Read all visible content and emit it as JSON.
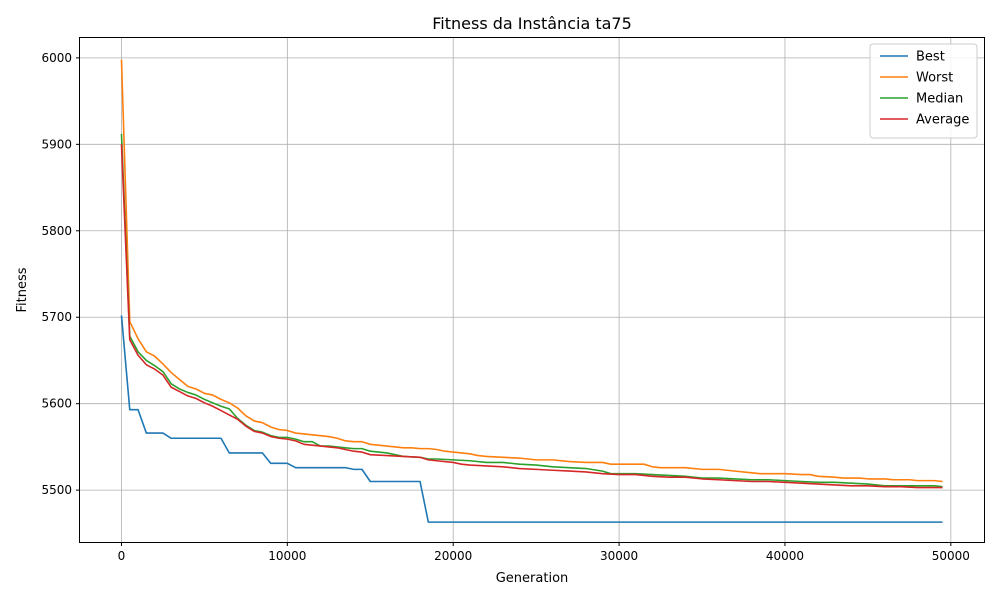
{
  "chart_data": {
    "type": "line",
    "title": "Fitness da Instância ta75",
    "xlabel": "Generation",
    "ylabel": "Fitness",
    "xlim": [
      -2500,
      52000
    ],
    "ylim": [
      5440,
      6023
    ],
    "xticks": [
      0,
      10000,
      20000,
      30000,
      40000,
      50000
    ],
    "yticks": [
      5500,
      5600,
      5700,
      5800,
      5900,
      6000
    ],
    "grid": true,
    "legend_position": "top-right",
    "series": [
      {
        "name": "Best",
        "color": "#1f77b4",
        "points": [
          [
            0,
            5702
          ],
          [
            500,
            5593
          ],
          [
            1000,
            5593
          ],
          [
            1500,
            5566
          ],
          [
            2500,
            5566
          ],
          [
            3000,
            5560
          ],
          [
            6000,
            5560
          ],
          [
            6500,
            5543
          ],
          [
            8500,
            5543
          ],
          [
            9000,
            5531
          ],
          [
            10000,
            5531
          ],
          [
            10500,
            5526
          ],
          [
            13500,
            5526
          ],
          [
            14000,
            5524
          ],
          [
            14500,
            5524
          ],
          [
            15000,
            5510
          ],
          [
            18000,
            5510
          ],
          [
            18500,
            5463
          ],
          [
            49500,
            5463
          ]
        ]
      },
      {
        "name": "Worst",
        "color": "#ff7f0e",
        "points": [
          [
            0,
            5998
          ],
          [
            500,
            5695
          ],
          [
            1000,
            5675
          ],
          [
            1500,
            5660
          ],
          [
            2000,
            5655
          ],
          [
            2500,
            5646
          ],
          [
            3000,
            5636
          ],
          [
            3500,
            5628
          ],
          [
            4000,
            5620
          ],
          [
            4500,
            5617
          ],
          [
            5000,
            5612
          ],
          [
            5500,
            5610
          ],
          [
            6000,
            5605
          ],
          [
            6500,
            5601
          ],
          [
            7000,
            5595
          ],
          [
            7500,
            5586
          ],
          [
            8000,
            5580
          ],
          [
            8500,
            5578
          ],
          [
            9000,
            5573
          ],
          [
            9500,
            5570
          ],
          [
            10000,
            5569
          ],
          [
            10500,
            5566
          ],
          [
            11000,
            5565
          ],
          [
            12000,
            5563
          ],
          [
            12500,
            5562
          ],
          [
            13000,
            5560
          ],
          [
            13500,
            5557
          ],
          [
            14000,
            5556
          ],
          [
            14500,
            5556
          ],
          [
            15000,
            5553
          ],
          [
            16000,
            5551
          ],
          [
            17000,
            5549
          ],
          [
            17500,
            5549
          ],
          [
            18000,
            5548
          ],
          [
            18500,
            5548
          ],
          [
            19000,
            5547
          ],
          [
            19500,
            5545
          ],
          [
            20000,
            5544
          ],
          [
            21000,
            5542
          ],
          [
            21500,
            5540
          ],
          [
            22000,
            5539
          ],
          [
            23000,
            5538
          ],
          [
            24000,
            5537
          ],
          [
            25000,
            5535
          ],
          [
            26000,
            5535
          ],
          [
            27000,
            5533
          ],
          [
            28000,
            5532
          ],
          [
            29000,
            5532
          ],
          [
            29500,
            5530
          ],
          [
            31500,
            5530
          ],
          [
            32000,
            5527
          ],
          [
            32500,
            5526
          ],
          [
            33500,
            5526
          ],
          [
            34000,
            5526
          ],
          [
            35000,
            5524
          ],
          [
            36000,
            5524
          ],
          [
            37000,
            5522
          ],
          [
            38000,
            5520
          ],
          [
            38500,
            5519
          ],
          [
            40000,
            5519
          ],
          [
            41000,
            5518
          ],
          [
            41500,
            5518
          ],
          [
            42000,
            5516
          ],
          [
            43000,
            5515
          ],
          [
            43500,
            5514
          ],
          [
            44500,
            5514
          ],
          [
            45000,
            5513
          ],
          [
            46000,
            5513
          ],
          [
            46500,
            5512
          ],
          [
            47500,
            5512
          ],
          [
            48000,
            5511
          ],
          [
            49000,
            5511
          ],
          [
            49500,
            5510
          ]
        ]
      },
      {
        "name": "Median",
        "color": "#2ca02c",
        "points": [
          [
            0,
            5912
          ],
          [
            500,
            5678
          ],
          [
            1000,
            5660
          ],
          [
            1500,
            5650
          ],
          [
            2000,
            5644
          ],
          [
            2500,
            5637
          ],
          [
            3000,
            5623
          ],
          [
            3500,
            5617
          ],
          [
            4000,
            5613
          ],
          [
            4500,
            5610
          ],
          [
            5000,
            5605
          ],
          [
            5500,
            5601
          ],
          [
            6000,
            5597
          ],
          [
            6500,
            5594
          ],
          [
            7000,
            5583
          ],
          [
            7500,
            5575
          ],
          [
            8000,
            5569
          ],
          [
            8500,
            5567
          ],
          [
            9000,
            5563
          ],
          [
            9500,
            5561
          ],
          [
            10000,
            5561
          ],
          [
            10500,
            5559
          ],
          [
            11000,
            5556
          ],
          [
            11500,
            5556
          ],
          [
            12000,
            5551
          ],
          [
            12500,
            5551
          ],
          [
            13000,
            5550
          ],
          [
            13500,
            5549
          ],
          [
            14000,
            5548
          ],
          [
            14500,
            5548
          ],
          [
            15000,
            5545
          ],
          [
            16000,
            5543
          ],
          [
            17000,
            5539
          ],
          [
            18000,
            5538
          ],
          [
            18500,
            5536
          ],
          [
            19000,
            5536
          ],
          [
            20000,
            5535
          ],
          [
            21000,
            5534
          ],
          [
            22000,
            5532
          ],
          [
            23000,
            5532
          ],
          [
            24000,
            5530
          ],
          [
            25000,
            5529
          ],
          [
            26000,
            5527
          ],
          [
            27000,
            5526
          ],
          [
            28000,
            5525
          ],
          [
            29000,
            5522
          ],
          [
            29500,
            5519
          ],
          [
            31000,
            5519
          ],
          [
            32000,
            5518
          ],
          [
            33000,
            5517
          ],
          [
            34000,
            5516
          ],
          [
            35000,
            5514
          ],
          [
            36000,
            5514
          ],
          [
            37000,
            5513
          ],
          [
            38000,
            5512
          ],
          [
            39000,
            5512
          ],
          [
            40000,
            5511
          ],
          [
            41000,
            5510
          ],
          [
            42000,
            5509
          ],
          [
            43000,
            5509
          ],
          [
            44000,
            5508
          ],
          [
            45000,
            5507
          ],
          [
            46000,
            5505
          ],
          [
            47000,
            5505
          ],
          [
            48000,
            5505
          ],
          [
            49000,
            5505
          ],
          [
            49500,
            5504
          ]
        ]
      },
      {
        "name": "Average",
        "color": "#d62728",
        "points": [
          [
            0,
            5900
          ],
          [
            500,
            5674
          ],
          [
            1000,
            5656
          ],
          [
            1500,
            5645
          ],
          [
            2000,
            5640
          ],
          [
            2500,
            5633
          ],
          [
            3000,
            5619
          ],
          [
            3500,
            5614
          ],
          [
            4000,
            5609
          ],
          [
            4500,
            5606
          ],
          [
            5000,
            5601
          ],
          [
            5500,
            5597
          ],
          [
            6000,
            5592
          ],
          [
            6500,
            5587
          ],
          [
            7000,
            5582
          ],
          [
            7500,
            5574
          ],
          [
            8000,
            5568
          ],
          [
            8500,
            5566
          ],
          [
            9000,
            5562
          ],
          [
            9500,
            5560
          ],
          [
            10000,
            5559
          ],
          [
            10500,
            5557
          ],
          [
            11000,
            5553
          ],
          [
            12000,
            5551
          ],
          [
            13000,
            5549
          ],
          [
            13500,
            5547
          ],
          [
            14000,
            5545
          ],
          [
            14500,
            5544
          ],
          [
            15000,
            5541
          ],
          [
            16000,
            5540
          ],
          [
            17000,
            5539
          ],
          [
            18000,
            5538
          ],
          [
            18500,
            5535
          ],
          [
            19000,
            5534
          ],
          [
            20000,
            5532
          ],
          [
            20500,
            5530
          ],
          [
            21000,
            5529
          ],
          [
            22000,
            5528
          ],
          [
            23000,
            5527
          ],
          [
            24000,
            5525
          ],
          [
            25000,
            5524
          ],
          [
            26000,
            5523
          ],
          [
            27000,
            5522
          ],
          [
            28000,
            5521
          ],
          [
            29000,
            5519
          ],
          [
            30000,
            5518
          ],
          [
            31000,
            5518
          ],
          [
            32000,
            5516
          ],
          [
            33000,
            5515
          ],
          [
            34000,
            5515
          ],
          [
            35000,
            5513
          ],
          [
            36000,
            5512
          ],
          [
            37000,
            5511
          ],
          [
            38000,
            5510
          ],
          [
            39000,
            5510
          ],
          [
            40000,
            5509
          ],
          [
            41000,
            5508
          ],
          [
            42000,
            5507
          ],
          [
            43000,
            5506
          ],
          [
            44000,
            5505
          ],
          [
            45000,
            5505
          ],
          [
            46000,
            5504
          ],
          [
            47000,
            5504
          ],
          [
            48000,
            5503
          ],
          [
            49000,
            5503
          ],
          [
            49500,
            5503
          ]
        ]
      }
    ]
  }
}
